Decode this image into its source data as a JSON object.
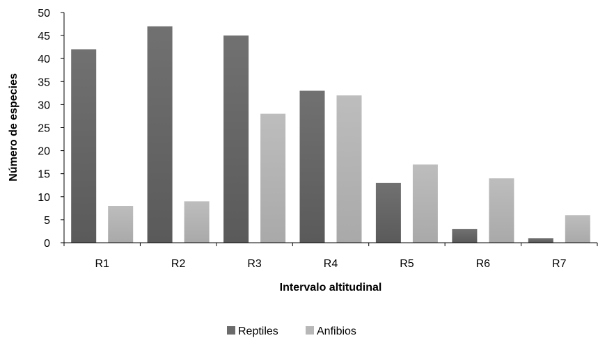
{
  "chart_data": {
    "type": "bar",
    "title": "",
    "xlabel": "Intervalo altitudinal",
    "ylabel": "Número de especies",
    "categories": [
      "R1",
      "R2",
      "R3",
      "R4",
      "R5",
      "R6",
      "R7"
    ],
    "series": [
      {
        "name": "Reptiles",
        "values": [
          42,
          47,
          45,
          33,
          13,
          3,
          1
        ],
        "color": "#6b6b6b"
      },
      {
        "name": "Anfibios",
        "values": [
          8,
          9,
          28,
          32,
          17,
          14,
          6
        ],
        "color": "#b7b7b7"
      }
    ],
    "ylim": [
      0,
      50
    ],
    "yticks": [
      0,
      5,
      10,
      15,
      20,
      25,
      30,
      35,
      40,
      45,
      50
    ],
    "grid": false,
    "legend_position": "bottom"
  }
}
